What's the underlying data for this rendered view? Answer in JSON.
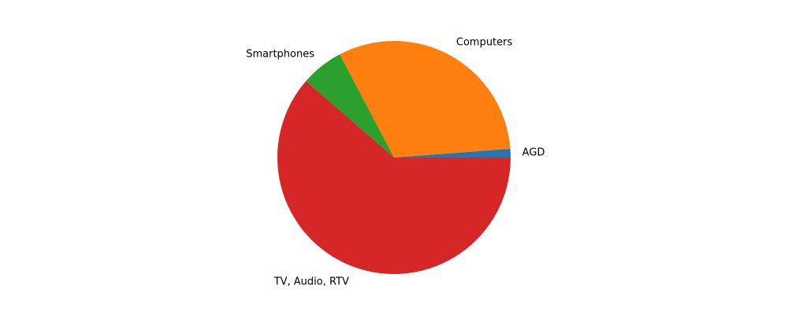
{
  "chart_data": {
    "type": "pie",
    "title": "",
    "start_angle_deg": 0,
    "direction": "counterclockwise",
    "slices": [
      {
        "label": "AGD",
        "value": 1.2,
        "color": "#1f77b4"
      },
      {
        "label": "Computers",
        "value": 31.5,
        "color": "#ff7f0e"
      },
      {
        "label": "Smartphones",
        "value": 5.9,
        "color": "#2ca02c"
      },
      {
        "label": "TV, Audio, RTV",
        "value": 61.4,
        "color": "#d62728"
      }
    ],
    "legend": "none"
  }
}
